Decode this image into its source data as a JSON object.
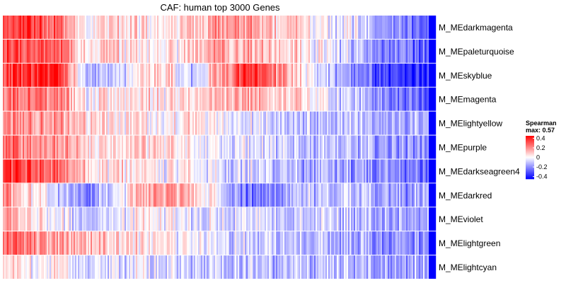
{
  "chart_data": {
    "type": "heatmap",
    "title": "CAF: human top 3000 Genes",
    "n_columns": 3000,
    "rows": [
      {
        "label": "M_MEdarkmagenta",
        "profile": [
          0.3,
          0.33,
          0.25,
          0.05,
          0.1,
          0.05,
          0.02,
          0.08,
          0.2,
          0.18,
          0.12,
          0.08,
          -0.05,
          -0.05,
          -0.15,
          -0.25,
          -0.35
        ]
      },
      {
        "label": "M_MEpaleturquoise",
        "profile": [
          0.28,
          0.3,
          0.28,
          0.05,
          0.08,
          0.05,
          0.02,
          0.1,
          0.18,
          0.15,
          0.1,
          0.05,
          -0.05,
          -0.1,
          -0.18,
          -0.25,
          -0.32
        ]
      },
      {
        "label": "M_MEskyblue",
        "profile": [
          0.3,
          0.38,
          0.42,
          -0.1,
          -0.12,
          0.02,
          0.1,
          -0.12,
          0.15,
          0.38,
          0.25,
          0.05,
          -0.1,
          -0.2,
          -0.3,
          -0.38,
          -0.4
        ]
      },
      {
        "label": "M_MEmagenta",
        "profile": [
          0.22,
          0.25,
          0.25,
          0.0,
          0.05,
          0.05,
          0.05,
          0.05,
          0.12,
          0.15,
          0.1,
          0.05,
          -0.05,
          -0.1,
          -0.18,
          -0.25,
          -0.3
        ]
      },
      {
        "label": "M_MElightyellow",
        "profile": [
          0.2,
          0.18,
          0.15,
          0.1,
          0.05,
          0.05,
          0.0,
          0.05,
          0.0,
          -0.05,
          -0.08,
          -0.1,
          -0.12,
          -0.12,
          -0.15,
          -0.15,
          -0.18
        ]
      },
      {
        "label": "M_MEpurple",
        "profile": [
          0.25,
          0.2,
          0.18,
          0.1,
          0.05,
          0.08,
          0.05,
          0.02,
          0.0,
          -0.05,
          -0.08,
          -0.1,
          -0.12,
          -0.15,
          -0.15,
          -0.18,
          -0.2
        ]
      },
      {
        "label": "M_MEdarkseagreen4",
        "profile": [
          0.35,
          0.3,
          0.25,
          0.1,
          0.05,
          0.05,
          0.0,
          0.0,
          -0.05,
          -0.08,
          -0.1,
          -0.15,
          -0.15,
          -0.2,
          -0.2,
          -0.25,
          -0.28
        ]
      },
      {
        "label": "M_MEdarkred",
        "profile": [
          0.2,
          0.05,
          -0.1,
          -0.2,
          -0.1,
          0.1,
          0.2,
          0.1,
          -0.05,
          -0.25,
          -0.2,
          -0.1,
          -0.15,
          -0.1,
          -0.15,
          -0.2,
          -0.15
        ]
      },
      {
        "label": "M_MEviolet",
        "profile": [
          0.15,
          0.05,
          0.0,
          -0.08,
          -0.05,
          0.0,
          0.0,
          -0.05,
          -0.05,
          -0.05,
          -0.1,
          -0.1,
          -0.1,
          -0.12,
          -0.12,
          -0.15,
          -0.2
        ]
      },
      {
        "label": "M_MElightgreen",
        "profile": [
          0.28,
          0.2,
          0.15,
          0.15,
          0.1,
          0.05,
          0.02,
          0.0,
          -0.05,
          -0.08,
          -0.1,
          -0.12,
          -0.15,
          -0.15,
          -0.18,
          -0.2,
          -0.22
        ]
      },
      {
        "label": "M_MElightcyan",
        "profile": [
          0.05,
          0.02,
          0.0,
          -0.05,
          -0.05,
          -0.05,
          -0.08,
          -0.08,
          -0.1,
          -0.1,
          -0.12,
          -0.12,
          -0.12,
          -0.15,
          -0.15,
          -0.15,
          -0.18
        ]
      }
    ],
    "color_scale": {
      "low": "#0000FF",
      "mid": "#FFFFFF",
      "high": "#FF0000",
      "vmin": -0.45,
      "vmax": 0.57
    },
    "legend": {
      "title": "Spearman",
      "subtitle": "max: 0.57",
      "ticks": [
        {
          "label": "0.4",
          "value": 0.4
        },
        {
          "label": "0.2",
          "value": 0.2
        },
        {
          "label": "0",
          "value": 0
        },
        {
          "label": "-0.2",
          "value": -0.2
        },
        {
          "label": "-0.4",
          "value": -0.4
        }
      ],
      "placement": "right"
    }
  }
}
